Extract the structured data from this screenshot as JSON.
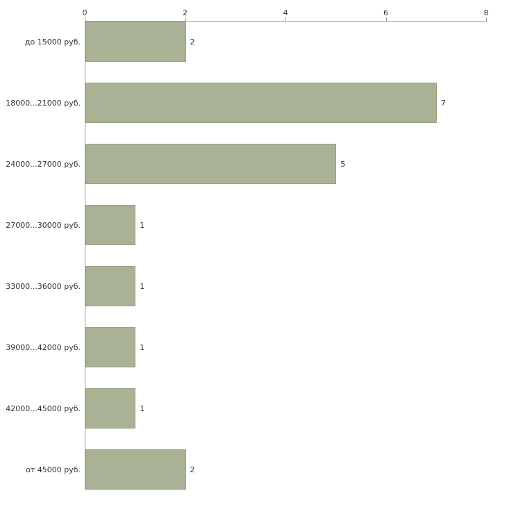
{
  "chart_data": {
    "type": "bar",
    "orientation": "horizontal",
    "title": "",
    "xlabel": "",
    "ylabel": "",
    "categories": [
      "до 15000 руб.",
      "18000...21000 руб.",
      "24000...27000 руб.",
      "27000...30000 руб.",
      "33000...36000 руб.",
      "39000...42000 руб.",
      "42000...45000 руб.",
      "от 45000 руб."
    ],
    "values": [
      2,
      7,
      5,
      1,
      1,
      1,
      1,
      2
    ],
    "value_labels": [
      "2",
      "7",
      "5",
      "1",
      "1",
      "1",
      "1",
      "2"
    ],
    "xlim": [
      0,
      8
    ],
    "xticks": [
      0,
      2,
      4,
      6,
      8
    ],
    "xtick_labels": [
      "0",
      "2",
      "4",
      "6",
      "8"
    ],
    "grid": false,
    "legend": false,
    "bar_color": "#a9b294",
    "bar_border_color": "#98a27e",
    "axis_color": "#9a9a9a",
    "text_color": "#333333",
    "background_color": "#ffffff"
  },
  "layout_meta": {
    "note": "horizontal bar chart of vacancy counts per salary range, axis on top"
  }
}
